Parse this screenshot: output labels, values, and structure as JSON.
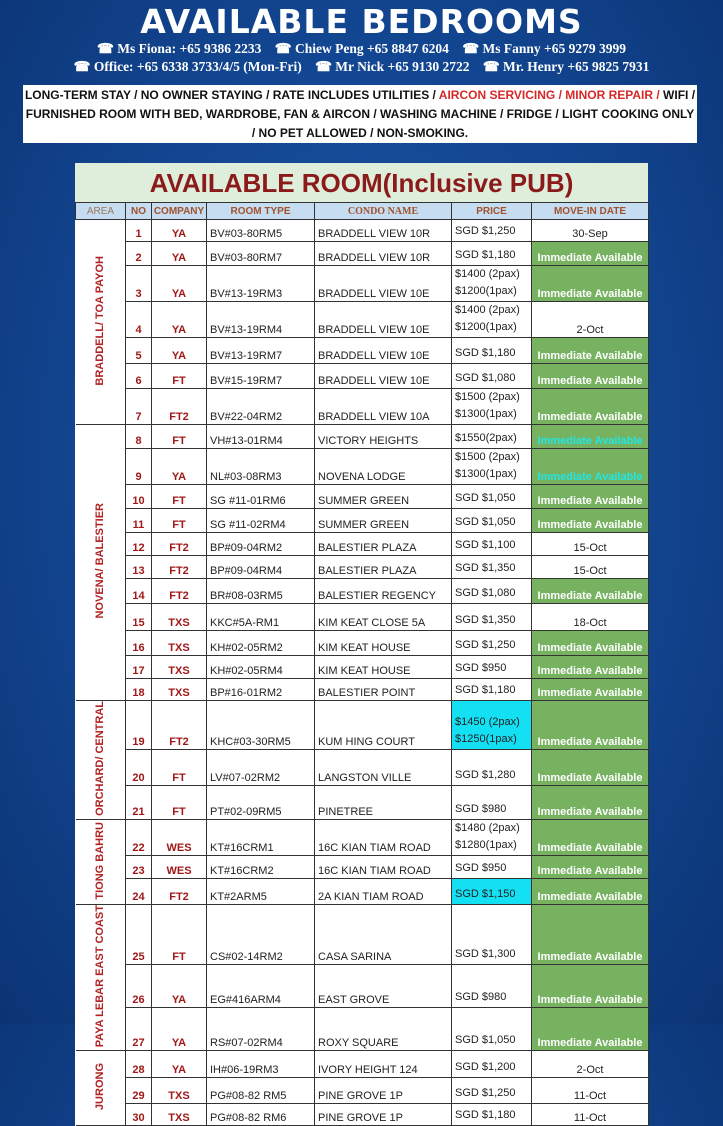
{
  "header": {
    "title": "AVAILABLE BEDROOMS",
    "contacts_line1": [
      "☎ Ms Fiona: +65 9386 2233",
      "☎ Chiew Peng +65 8847 6204",
      "☎ Ms Fanny +65 9279 3999"
    ],
    "contacts_line2": [
      "☎ Office: +65 6338 3733/4/5 (Mon-Fri)",
      "☎ Mr Nick +65 9130 2722",
      "☎ Mr. Henry +65 9825 7931"
    ]
  },
  "notice": {
    "part1": "LONG-TERM STAY / NO OWNER STAYING / RATE INCLUDES UTILITIES / ",
    "highlight": "AIRCON SERVICING / MINOR REPAIR /",
    "part2": " WIFI / FURNISHED ROOM WITH BED, WARDROBE, FAN & AIRCON / WASHING MACHINE / FRIDGE / LIGHT COOKING ONLY / NO PET ALLOWED / NON-SMOKING."
  },
  "colors": {
    "background": "#124590",
    "available_fill": "#76b260",
    "price_highlight": "#14e0f4",
    "accent_red": "#a01818",
    "title_bg": "#dfeedb",
    "header_bg": "#c6dcf0"
  },
  "table": {
    "title": "AVAILABLE ROOM(Inclusive PUB)",
    "columns": [
      "AREA",
      "NO",
      "COMPANY",
      "ROOM TYPE",
      "CONDO NAME",
      "PRICE",
      "MOVE-IN DATE"
    ],
    "areas": [
      {
        "name": "BRADDELL/ TOA PAYOH",
        "rows": 7
      },
      {
        "name": "NOVENA/ BALESTIER",
        "rows": 11
      },
      {
        "name": "ORCHARD/ CENTRAL",
        "rows": 3
      },
      {
        "name": "TIONG BAHRU",
        "rows": 3
      },
      {
        "name": "PAYA LEBAR EAST COAST",
        "rows": 3
      },
      {
        "name": "JURONG",
        "rows": 3
      }
    ],
    "rows": [
      {
        "no": "1",
        "company": "YA",
        "room": "BV#03-80RM5",
        "condo": "BRADDELL VIEW 10R",
        "price": [
          "SGD $1,250"
        ],
        "move": "30-Sep",
        "status": "date"
      },
      {
        "no": "2",
        "company": "YA",
        "room": "BV#03-80RM7",
        "condo": "BRADDELL VIEW 10R",
        "price": [
          "SGD $1,180"
        ],
        "move": "Immediate Available",
        "status": "immediate"
      },
      {
        "no": "3",
        "company": "YA",
        "room": "BV#13-19RM3",
        "condo": "BRADDELL VIEW 10E",
        "price": [
          "$1400 (2pax)",
          "$1200(1pax)"
        ],
        "move": "Immediate Available",
        "status": "immediate"
      },
      {
        "no": "4",
        "company": "YA",
        "room": "BV#13-19RM4",
        "condo": "BRADDELL VIEW 10E",
        "price": [
          "$1400 (2pax)",
          "$1200(1pax)"
        ],
        "move": "2-Oct",
        "status": "date"
      },
      {
        "no": "5",
        "company": "YA",
        "room": "BV#13-19RM7",
        "condo": "BRADDELL VIEW 10E",
        "price": [
          "SGD $1,180"
        ],
        "move": "Immediate Available",
        "status": "immediate"
      },
      {
        "no": "6",
        "company": "FT",
        "room": "BV#15-19RM7",
        "condo": "BRADDELL VIEW 10E",
        "price": [
          "SGD $1,080"
        ],
        "move": "Immediate Available",
        "status": "immediate"
      },
      {
        "no": "7",
        "company": "FT2",
        "room": "BV#22-04RM2",
        "condo": "BRADDELL VIEW 10A",
        "price": [
          "$1500 (2pax)",
          "$1300(1pax)"
        ],
        "move": "Immediate Available",
        "status": "immediate"
      },
      {
        "no": "8",
        "company": "FT",
        "room": "VH#13-01RM4",
        "condo": "VICTORY HEIGHTS",
        "price": [
          "$1550(2pax)"
        ],
        "move": "Immediate Available",
        "status": "immediate-cyan"
      },
      {
        "no": "9",
        "company": "YA",
        "room": "NL#03-08RM3",
        "condo": "NOVENA LODGE",
        "price": [
          "$1500 (2pax)",
          "$1300(1pax)"
        ],
        "move": "Immediate Available",
        "status": "immediate-cyan"
      },
      {
        "no": "10",
        "company": "FT",
        "room": "SG #11-01RM6",
        "condo": "SUMMER GREEN",
        "price": [
          "SGD $1,050"
        ],
        "move": "Immediate Available",
        "status": "immediate"
      },
      {
        "no": "11",
        "company": "FT",
        "room": "SG #11-02RM4",
        "condo": "SUMMER GREEN",
        "price": [
          "SGD $1,050"
        ],
        "move": "Immediate Available",
        "status": "immediate"
      },
      {
        "no": "12",
        "company": "FT2",
        "room": "BP#09-04RM2",
        "condo": "BALESTIER PLAZA",
        "price": [
          "SGD $1,100"
        ],
        "move": "15-Oct",
        "status": "date"
      },
      {
        "no": "13",
        "company": "FT2",
        "room": "BP#09-04RM4",
        "condo": "BALESTIER PLAZA",
        "price": [
          "SGD $1,350"
        ],
        "move": "15-Oct",
        "status": "date"
      },
      {
        "no": "14",
        "company": "FT2",
        "room": "BR#08-03RM5",
        "condo": "BALESTIER REGENCY",
        "price": [
          "SGD $1,080"
        ],
        "move": "Immediate Available",
        "status": "immediate"
      },
      {
        "no": "15",
        "company": "TXS",
        "room": "KKC#5A-RM1",
        "condo": "KIM KEAT CLOSE 5A",
        "price": [
          "SGD $1,350"
        ],
        "move": "18-Oct",
        "status": "date"
      },
      {
        "no": "16",
        "company": "TXS",
        "room": "KH#02-05RM2",
        "condo": "KIM KEAT HOUSE",
        "price": [
          "SGD $1,250"
        ],
        "move": "Immediate Available",
        "status": "immediate"
      },
      {
        "no": "17",
        "company": "TXS",
        "room": "KH#02-05RM4",
        "condo": "KIM KEAT HOUSE",
        "price": [
          "SGD $950"
        ],
        "move": "Immediate Available",
        "status": "immediate"
      },
      {
        "no": "18",
        "company": "TXS",
        "room": "BP#16-01RM2",
        "condo": "BALESTIER POINT",
        "price": [
          "SGD $1,180"
        ],
        "move": "Immediate Available",
        "status": "immediate"
      },
      {
        "no": "19",
        "company": "FT2",
        "room": "KHC#03-30RM5",
        "condo": "KUM HING COURT",
        "price": [
          "$1450 (2pax)",
          "$1250(1pax)"
        ],
        "price_highlight": true,
        "move": "Immediate Available",
        "status": "immediate"
      },
      {
        "no": "20",
        "company": "FT",
        "room": "LV#07-02RM2",
        "condo": "LANGSTON VILLE",
        "price": [
          "SGD $1,280"
        ],
        "move": "Immediate Available",
        "status": "immediate"
      },
      {
        "no": "21",
        "company": "FT",
        "room": "PT#02-09RM5",
        "condo": "PINETREE",
        "price": [
          "SGD $980"
        ],
        "move": "Immediate Available",
        "status": "immediate"
      },
      {
        "no": "22",
        "company": "WES",
        "room": "KT#16CRM1",
        "condo": "16C KIAN TIAM ROAD",
        "price": [
          "$1480 (2pax)",
          "$1280(1pax)"
        ],
        "move": "Immediate Available",
        "status": "immediate"
      },
      {
        "no": "23",
        "company": "WES",
        "room": "KT#16CRM2",
        "condo": "16C KIAN TIAM ROAD",
        "price": [
          "SGD $950"
        ],
        "move": "Immediate Available",
        "status": "immediate"
      },
      {
        "no": "24",
        "company": "FT2",
        "room": "KT#2ARM5",
        "condo": "2A KIAN TIAM ROAD",
        "price": [
          "SGD $1,150"
        ],
        "price_highlight": true,
        "move": "Immediate Available",
        "status": "immediate"
      },
      {
        "no": "25",
        "company": "FT",
        "room": "CS#02-14RM2",
        "condo": "CASA SARINA",
        "price": [
          "SGD $1,300"
        ],
        "move": "Immediate Available",
        "status": "immediate"
      },
      {
        "no": "26",
        "company": "YA",
        "room": "EG#416ARM4",
        "condo": "EAST GROVE",
        "price": [
          "SGD $980"
        ],
        "move": "Immediate Available",
        "status": "immediate"
      },
      {
        "no": "27",
        "company": "YA",
        "room": "RS#07-02RM4",
        "condo": "ROXY SQUARE",
        "price": [
          "SGD $1,050"
        ],
        "move": "Immediate Available",
        "status": "immediate"
      },
      {
        "no": "28",
        "company": "YA",
        "room": "IH#06-19RM3",
        "condo": "IVORY HEIGHT 124",
        "price": [
          "SGD $1,200"
        ],
        "move": "2-Oct",
        "status": "date"
      },
      {
        "no": "29",
        "company": "TXS",
        "room": "PG#08-82 RM5",
        "condo": "PINE GROVE 1P",
        "price": [
          "SGD $1,250"
        ],
        "move": "11-Oct",
        "status": "date"
      },
      {
        "no": "30",
        "company": "TXS",
        "room": "PG#08-82 RM6",
        "condo": "PINE GROVE 1P",
        "price": [
          "SGD $1,180"
        ],
        "move": "11-Oct",
        "status": "date"
      }
    ]
  }
}
